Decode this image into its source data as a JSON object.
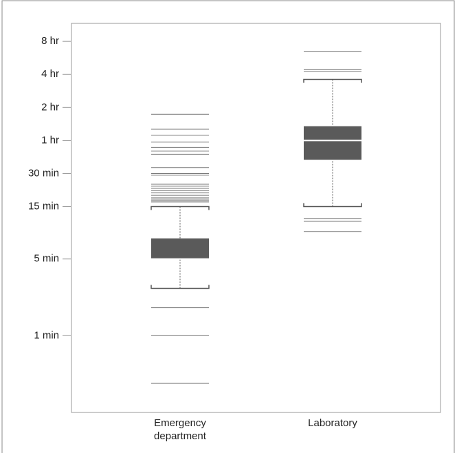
{
  "chart_data": {
    "type": "box",
    "yscale": "log",
    "categories": [
      "Emergency department",
      "Laboratory"
    ],
    "boxes": [
      {
        "whisker_low": 2.7,
        "q1": 5,
        "median": 5,
        "q3": 7.7,
        "whisker_high": 15,
        "outliers": [
          0.37,
          1,
          1.8,
          16.5,
          17,
          17.5,
          18,
          19,
          20,
          21,
          22,
          23,
          24,
          29,
          30,
          34,
          45,
          48,
          52,
          58,
          67,
          76,
          104
        ]
      },
      {
        "whisker_low": 15,
        "q1": 40,
        "median": 60,
        "q3": 81,
        "whisker_high": 216,
        "outliers": [
          8.9,
          11,
          11.7,
          256,
          265,
          390
        ]
      }
    ],
    "box_color": "#5a5a5a",
    "median_color": "#ffffff",
    "whisker_color": "#aaaaaa",
    "outlier_color": "#777777",
    "ylim": [
      0.2,
      700
    ],
    "yticks": [
      {
        "value": 1,
        "label": "1 min"
      },
      {
        "value": 5,
        "label": "5 min"
      },
      {
        "value": 15,
        "label": "15 min"
      },
      {
        "value": 30,
        "label": "30 min"
      },
      {
        "value": 60,
        "label": "1 hr"
      },
      {
        "value": 120,
        "label": "2 hr"
      },
      {
        "value": 240,
        "label": "4 hr"
      },
      {
        "value": 480,
        "label": "8 hr"
      }
    ]
  }
}
